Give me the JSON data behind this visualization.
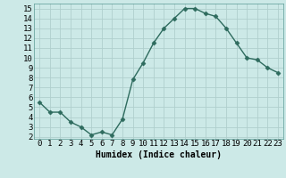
{
  "x": [
    0,
    1,
    2,
    3,
    4,
    5,
    6,
    7,
    8,
    9,
    10,
    11,
    12,
    13,
    14,
    15,
    16,
    17,
    18,
    19,
    20,
    21,
    22,
    23
  ],
  "y": [
    5.5,
    4.5,
    4.5,
    3.5,
    3.0,
    2.2,
    2.5,
    2.2,
    3.8,
    7.8,
    9.5,
    11.5,
    13.0,
    14.0,
    15.0,
    15.0,
    14.5,
    14.2,
    13.0,
    11.5,
    10.0,
    9.8,
    9.0,
    8.5
  ],
  "line_color": "#2e6b5e",
  "marker": "D",
  "marker_size": 2.5,
  "bg_color": "#cce9e7",
  "grid_color": "#b0cfcd",
  "xlabel": "Humidex (Indice chaleur)",
  "xlabel_fontsize": 7,
  "tick_fontsize": 6.5,
  "ylim": [
    1.8,
    15.5
  ],
  "xlim": [
    -0.5,
    23.5
  ],
  "yticks": [
    2,
    3,
    4,
    5,
    6,
    7,
    8,
    9,
    10,
    11,
    12,
    13,
    14,
    15
  ],
  "xticks": [
    0,
    1,
    2,
    3,
    4,
    5,
    6,
    7,
    8,
    9,
    10,
    11,
    12,
    13,
    14,
    15,
    16,
    17,
    18,
    19,
    20,
    21,
    22,
    23
  ]
}
